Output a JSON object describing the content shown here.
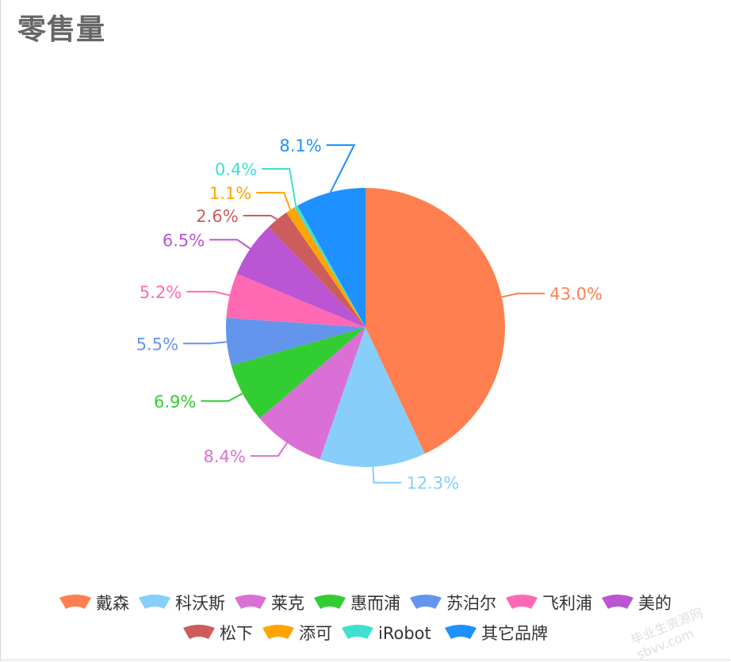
{
  "chart_data": {
    "type": "pie",
    "title": "零售量",
    "slices": [
      {
        "name": "戴森",
        "value": 43.0,
        "label": "43.0%",
        "color": "#ff7f50"
      },
      {
        "name": "科沃斯",
        "value": 12.3,
        "label": "12.3%",
        "color": "#87cefa"
      },
      {
        "name": "莱克",
        "value": 8.4,
        "label": "8.4%",
        "color": "#da70d6"
      },
      {
        "name": "惠而浦",
        "value": 6.9,
        "label": "6.9%",
        "color": "#32cd32"
      },
      {
        "name": "苏泊尔",
        "value": 5.5,
        "label": "5.5%",
        "color": "#6495ed"
      },
      {
        "name": "飞利浦",
        "value": 5.2,
        "label": "5.2%",
        "color": "#ff69b4"
      },
      {
        "name": "美的",
        "value": 6.5,
        "label": "6.5%",
        "color": "#ba55d3"
      },
      {
        "name": "松下",
        "value": 2.6,
        "label": "2.6%",
        "color": "#cd5c5c"
      },
      {
        "name": "添可",
        "value": 1.1,
        "label": "1.1%",
        "color": "#ffa500"
      },
      {
        "name": "iRobot",
        "value": 0.4,
        "label": "0.4%",
        "color": "#40e0d0"
      },
      {
        "name": "其它品牌",
        "value": 8.1,
        "label": "8.1%",
        "color": "#1e90ff"
      }
    ],
    "legend_position": "bottom"
  },
  "watermark": "毕业生资源网 sbvv.com"
}
